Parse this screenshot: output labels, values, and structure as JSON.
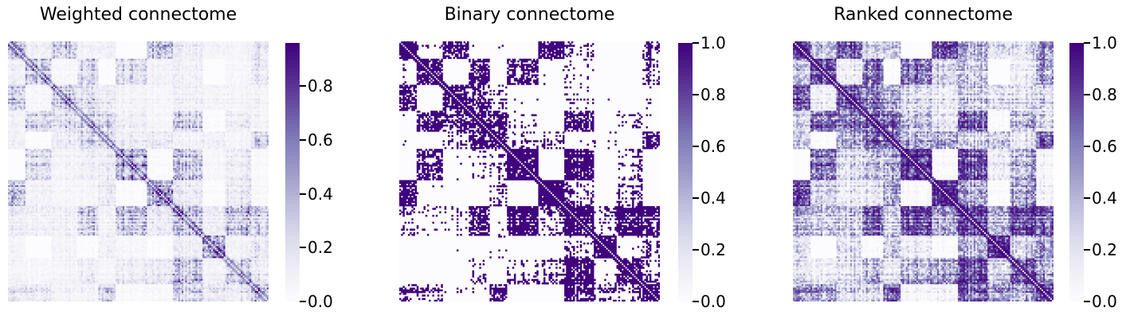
{
  "chart_data": [
    {
      "type": "heatmap",
      "title": "Weighted connectome",
      "xlabel": "",
      "ylabel": "",
      "colormap": "Purples",
      "colorbar": {
        "min": 0.0,
        "max": 0.96,
        "ticks": [
          "0.0",
          "0.2",
          "0.4",
          "0.6",
          "0.8"
        ]
      },
      "matrix_size": 150,
      "variant": "weighted",
      "grid": false
    },
    {
      "type": "heatmap",
      "title": "Binary connectome",
      "xlabel": "",
      "ylabel": "",
      "colormap": "Purples",
      "colorbar": {
        "min": 0.0,
        "max": 1.0,
        "ticks": [
          "0.0",
          "0.2",
          "0.4",
          "0.6",
          "0.8",
          "1.0"
        ]
      },
      "matrix_size": 150,
      "variant": "binary",
      "grid": false
    },
    {
      "type": "heatmap",
      "title": "Ranked connectome",
      "xlabel": "",
      "ylabel": "",
      "colormap": "Purples",
      "colorbar": {
        "min": 0.0,
        "max": 1.0,
        "ticks": [
          "0.0",
          "0.2",
          "0.4",
          "0.6",
          "0.8",
          "1.0"
        ]
      },
      "matrix_size": 150,
      "variant": "ranked",
      "grid": false
    }
  ],
  "colors": {
    "light": "#fcfbfd",
    "dark": "#3f007d"
  }
}
